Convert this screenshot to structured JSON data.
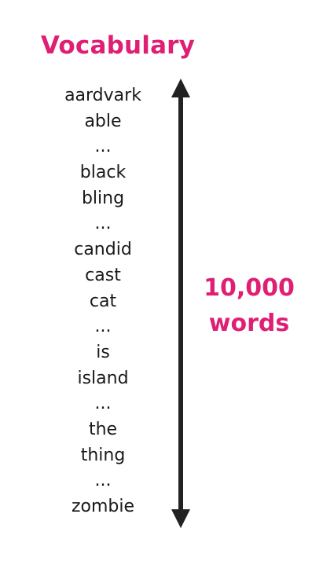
{
  "title": "Vocabulary",
  "accent_color": "#de1f73",
  "arrow_color": "#222222",
  "words": [
    "aardvark",
    "able",
    "...",
    "black",
    "bling",
    "...",
    "candid",
    "cast",
    "cat",
    "...",
    "is",
    "island",
    "...",
    "the",
    "thing",
    "...",
    "zombie"
  ],
  "count_label": {
    "line1": "10,000",
    "line2": "words"
  }
}
